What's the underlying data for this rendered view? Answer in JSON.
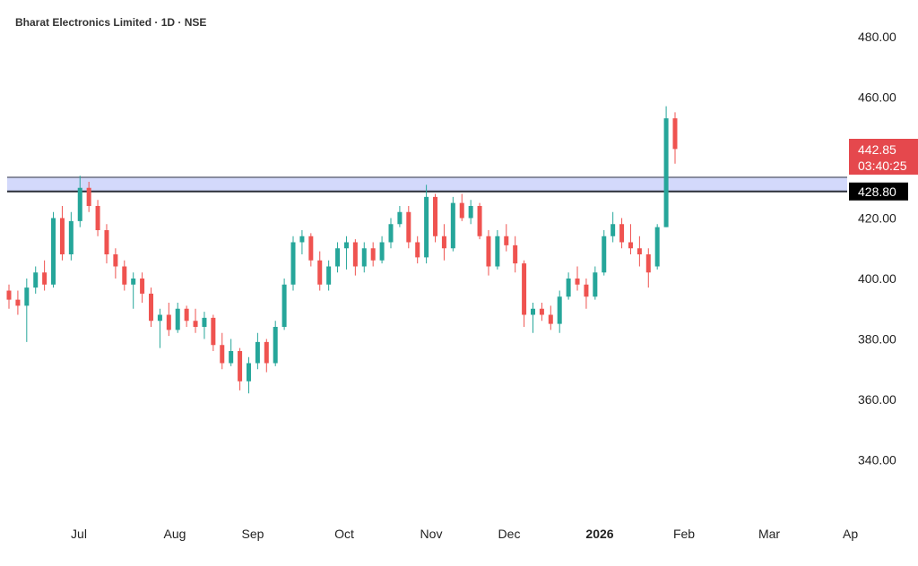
{
  "chart_data": {
    "type": "candlestick",
    "title": "Bharat Electronics Limited · 1D · NSE",
    "ylim": [
      325,
      490
    ],
    "y_ticks": [
      "480.00",
      "460.00",
      "420.00",
      "400.00",
      "380.00",
      "360.00",
      "340.00"
    ],
    "y_tick_values": [
      480,
      460,
      420,
      400,
      380,
      360,
      340
    ],
    "x_ticks": [
      "Jul",
      "Aug",
      "Sep",
      "Oct",
      "Nov",
      "Dec",
      "2026",
      "Feb",
      "Mar",
      "Ap"
    ],
    "last_price": "442.85",
    "countdown": "03:40:25",
    "resistance_level": "428.80",
    "resistance_zone": [
      428.8,
      433.5
    ],
    "colors": {
      "up": "#26a69a",
      "down": "#ef5350",
      "zone": "#d3d9fb",
      "zone_line": "#2a2e39",
      "last_bg": "#e5484d",
      "level_bg": "#000000"
    },
    "candles": [
      [
        396,
        398,
        390,
        393
      ],
      [
        393,
        396,
        388,
        391
      ],
      [
        391,
        400,
        379,
        397
      ],
      [
        397,
        404,
        395,
        402
      ],
      [
        402,
        406,
        396,
        398
      ],
      [
        398,
        422,
        397,
        420
      ],
      [
        420,
        424,
        406,
        408
      ],
      [
        408,
        422,
        406,
        419
      ],
      [
        419,
        434,
        417,
        430
      ],
      [
        430,
        432,
        422,
        424
      ],
      [
        424,
        426,
        414,
        416
      ],
      [
        416,
        418,
        405,
        408
      ],
      [
        408,
        410,
        400,
        404
      ],
      [
        404,
        406,
        396,
        398
      ],
      [
        398,
        402,
        390,
        400
      ],
      [
        400,
        402,
        392,
        395
      ],
      [
        395,
        397,
        384,
        386
      ],
      [
        386,
        390,
        377,
        388
      ],
      [
        388,
        392,
        381,
        383
      ],
      [
        383,
        392,
        382,
        390
      ],
      [
        390,
        391,
        384,
        386
      ],
      [
        386,
        390,
        382,
        384
      ],
      [
        384,
        389,
        380,
        387
      ],
      [
        387,
        388,
        376,
        378
      ],
      [
        378,
        382,
        370,
        372
      ],
      [
        372,
        380,
        371,
        376
      ],
      [
        376,
        377,
        363,
        366
      ],
      [
        366,
        374,
        362,
        372
      ],
      [
        372,
        382,
        370,
        379
      ],
      [
        379,
        380,
        369,
        372
      ],
      [
        372,
        386,
        371,
        384
      ],
      [
        384,
        400,
        383,
        398
      ],
      [
        398,
        414,
        396,
        412
      ],
      [
        412,
        416,
        408,
        414
      ],
      [
        414,
        415,
        404,
        406
      ],
      [
        406,
        409,
        396,
        398
      ],
      [
        398,
        406,
        396,
        404
      ],
      [
        404,
        412,
        402,
        410
      ],
      [
        410,
        414,
        403,
        412
      ],
      [
        412,
        413,
        401,
        404
      ],
      [
        404,
        412,
        402,
        410
      ],
      [
        410,
        412,
        404,
        406
      ],
      [
        406,
        414,
        405,
        412
      ],
      [
        412,
        420,
        410,
        418
      ],
      [
        418,
        424,
        417,
        422
      ],
      [
        422,
        424,
        410,
        412
      ],
      [
        412,
        414,
        405,
        407
      ],
      [
        407,
        431,
        405,
        427
      ],
      [
        427,
        428,
        412,
        414
      ],
      [
        414,
        418,
        406,
        410
      ],
      [
        410,
        427,
        409,
        425
      ],
      [
        425,
        428,
        419,
        420
      ],
      [
        420,
        426,
        418,
        424
      ],
      [
        424,
        425,
        413,
        414
      ],
      [
        414,
        416,
        401,
        404
      ],
      [
        404,
        416,
        403,
        414
      ],
      [
        414,
        418,
        409,
        411
      ],
      [
        411,
        414,
        402,
        405
      ],
      [
        405,
        406,
        384,
        388
      ],
      [
        388,
        392,
        382,
        390
      ],
      [
        390,
        392,
        386,
        388
      ],
      [
        388,
        391,
        383,
        385
      ],
      [
        385,
        396,
        382,
        394
      ],
      [
        394,
        402,
        393,
        400
      ],
      [
        400,
        404,
        396,
        398
      ],
      [
        398,
        400,
        390,
        394
      ],
      [
        394,
        404,
        393,
        402
      ],
      [
        402,
        416,
        401,
        414
      ],
      [
        414,
        422,
        412,
        418
      ],
      [
        418,
        420,
        410,
        412
      ],
      [
        412,
        418,
        408,
        410
      ],
      [
        410,
        414,
        404,
        408
      ],
      [
        408,
        410,
        397,
        402
      ],
      [
        404,
        418,
        403,
        417
      ],
      [
        417,
        457,
        417,
        453
      ],
      [
        453,
        455,
        438,
        442.85
      ]
    ]
  }
}
